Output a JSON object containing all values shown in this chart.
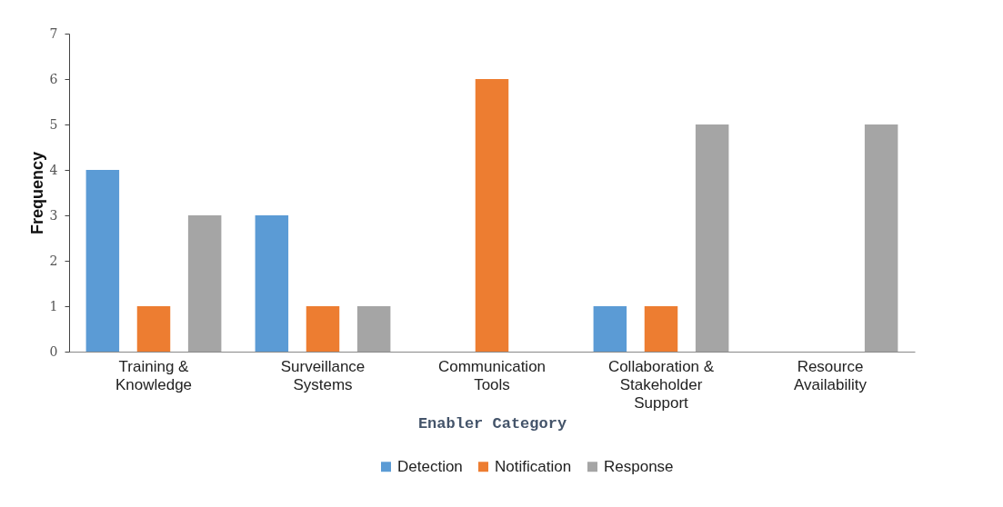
{
  "chart_data": {
    "type": "bar",
    "xlabel": "Enabler Category",
    "ylabel": "Frequency",
    "categories": [
      "Training & Knowledge",
      "Surveillance Systems",
      "Communication Tools",
      "Collaboration & Stakeholder Support",
      "Resource Availability"
    ],
    "series": [
      {
        "name": "Detection",
        "color": "#5b9bd5",
        "values": [
          4,
          3,
          0,
          1,
          0
        ]
      },
      {
        "name": "Notification",
        "color": "#ed7d31",
        "values": [
          1,
          1,
          6,
          1,
          0
        ]
      },
      {
        "name": "Response",
        "color": "#a5a5a5",
        "values": [
          3,
          1,
          0,
          5,
          5
        ]
      }
    ],
    "ylim": [
      0,
      7
    ],
    "yticks": [
      0,
      1,
      2,
      3,
      4,
      5,
      6,
      7
    ],
    "grid": false,
    "legend": "bottom"
  }
}
